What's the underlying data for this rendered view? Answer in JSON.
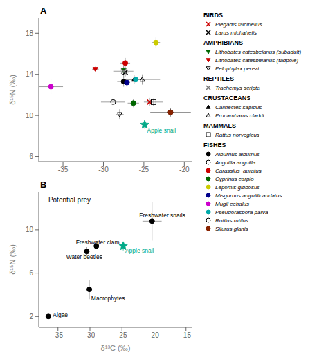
{
  "chart_data": [
    {
      "type": "scatter",
      "title": "A",
      "ylabel": "δ¹⁵N (‰)",
      "xlim": [
        -38,
        -19
      ],
      "ylim": [
        5.5,
        19.5
      ],
      "xticks": [
        -35,
        -30,
        -25,
        -20
      ],
      "yticks": [
        6,
        10,
        14,
        18
      ],
      "series": [
        {
          "name": "Plegadis falcinellus",
          "group": "BIRDS",
          "color": "#cc0000",
          "marker": "x",
          "x": [
            -24.3
          ],
          "values": [
            11.3
          ],
          "xerr": [
            0.35
          ],
          "yerr": [
            0.4
          ]
        },
        {
          "name": "Larus michahelis",
          "group": "BIRDS",
          "color": "#000000",
          "marker": "x",
          "x": [
            -27.3
          ],
          "values": [
            14.2
          ],
          "xerr": [
            0.5
          ],
          "yerr": [
            0.4
          ]
        },
        {
          "name": "Lithobates catesbeianus (subadult)",
          "group": "AMPHIBIANS",
          "color": "#006600",
          "marker": "triangle-down",
          "x": [
            -27.5
          ],
          "values": [
            14.4
          ],
          "xerr": [
            0.4
          ],
          "yerr": [
            0.35
          ]
        },
        {
          "name": "Lithobates catesbeianus (tadpole)",
          "group": "AMPHIBIANS",
          "color": "#cc0000",
          "marker": "triangle-down",
          "x": [
            -31.0
          ],
          "values": [
            14.5
          ],
          "xerr": [
            0.4
          ],
          "yerr": [
            0.3
          ]
        },
        {
          "name": "Pelophylax perezi",
          "group": "AMPHIBIANS",
          "color": "#000000",
          "marker": "triangle-down-open",
          "x": [
            -28.0
          ],
          "values": [
            10.1
          ],
          "xerr": [
            0.5
          ],
          "yerr": [
            0.5
          ]
        },
        {
          "name": "Trachemys scripta",
          "group": "REPTILES",
          "color": "#777777",
          "marker": "x",
          "x": [
            -27.5
          ],
          "values": [
            14.3
          ],
          "xerr": [
            1.2
          ],
          "yerr": [
            0.6
          ]
        },
        {
          "name": "Calinectes sapidus",
          "group": "CRUSTACEANS",
          "color": "#000000",
          "marker": "triangle-up",
          "x": [
            -26.2
          ],
          "values": [
            13.5
          ],
          "xerr": [
            1.0
          ],
          "yerr": [
            0.45
          ]
        },
        {
          "name": "Procambarus clarkii",
          "group": "CRUSTACEANS",
          "color": "#000000",
          "marker": "triangle-up-open",
          "x": [
            -25.2
          ],
          "values": [
            13.5
          ],
          "xerr": [
            2.2
          ],
          "yerr": [
            0.5
          ]
        },
        {
          "name": "Rattus norvegicus",
          "group": "MAMMALS",
          "color": "#000000",
          "marker": "square-open",
          "x": [
            -23.8
          ],
          "values": [
            11.3
          ],
          "xerr": [
            1.2
          ],
          "yerr": [
            0.35
          ]
        },
        {
          "name": "Alburnus alburnus",
          "group": "FISHES",
          "color": "#000000",
          "marker": "circle",
          "x": [
            -27.5
          ],
          "values": [
            13.3
          ],
          "xerr": [
            0.8
          ],
          "yerr": [
            0.5
          ]
        },
        {
          "name": "Anguilla anguilla",
          "group": "FISHES",
          "color": "#000000",
          "marker": "circle-open",
          "x": [
            -28.8
          ],
          "values": [
            11.3
          ],
          "xerr": [
            1.5
          ],
          "yerr": [
            0.5
          ]
        },
        {
          "name": "Carassius  auratus",
          "group": "FISHES",
          "color": "#cc0000",
          "marker": "circle",
          "x": [
            -27.3
          ],
          "values": [
            15.1
          ],
          "xerr": [
            0.6
          ],
          "yerr": [
            0.5
          ]
        },
        {
          "name": "Cyprinus carpio",
          "group": "FISHES",
          "color": "#006600",
          "marker": "circle",
          "x": [
            -26.3
          ],
          "values": [
            11.2
          ],
          "xerr": [
            0.7
          ],
          "yerr": [
            0.4
          ]
        },
        {
          "name": "Lepomis gibbosus",
          "group": "FISHES",
          "color": "#cccc00",
          "marker": "circle",
          "x": [
            -23.5
          ],
          "values": [
            17.1
          ],
          "xerr": [
            0.5
          ],
          "yerr": [
            0.5
          ]
        },
        {
          "name": "Misgurnus anguillicaudatus",
          "group": "FISHES",
          "color": "#00008B",
          "marker": "circle",
          "x": [
            -27.1
          ],
          "values": [
            13.2
          ],
          "xerr": [
            0.4
          ],
          "yerr": [
            0.4
          ]
        },
        {
          "name": "Mugil cehalus",
          "group": "FISHES",
          "color": "#cc00cc",
          "marker": "circle",
          "x": [
            -36.5
          ],
          "values": [
            12.8
          ],
          "xerr": [
            1.5
          ],
          "yerr": [
            0.7
          ]
        },
        {
          "name": "Pseudorasbora parva",
          "group": "FISHES",
          "color": "#00aaaa",
          "marker": "circle",
          "x": [
            -26.0
          ],
          "values": [
            13.5
          ],
          "xerr": [
            0.5
          ],
          "yerr": [
            0.3
          ]
        },
        {
          "name": "Rutilus rutilus",
          "group": "FISHES",
          "color": "#000000",
          "marker": "circle-open",
          "x": [
            -21.7
          ],
          "values": [
            10.3
          ],
          "xerr": [
            2.5
          ],
          "yerr": [
            0.4
          ]
        },
        {
          "name": "Silurus glanis",
          "group": "FISHES",
          "color": "#882200",
          "marker": "circle",
          "x": [
            -21.7
          ],
          "values": [
            10.3
          ],
          "xerr": [
            2.5
          ],
          "yerr": [
            0.4
          ]
        },
        {
          "color": "#00aa88",
          "marker": "star",
          "x": [
            -24.9
          ],
          "values": [
            9.1
          ],
          "xerr": [
            0.4
          ],
          "yerr": [
            0.4
          ]
        }
      ],
      "annotations": [
        {
          "text": "Apple snail",
          "x": -24.6,
          "y": 8.75,
          "color": "#00aa88"
        }
      ]
    },
    {
      "type": "scatter",
      "title": "B",
      "xlabel": "δ¹³C (‰)",
      "ylabel": "δ¹⁵N (‰)",
      "xlim": [
        -38,
        -14
      ],
      "ylim": [
        1.0,
        13.5
      ],
      "xticks": [
        -35,
        -30,
        -25,
        -20,
        -15
      ],
      "yticks": [
        2,
        6,
        10
      ],
      "series": [
        {
          "color": "#000000",
          "marker": "circle",
          "x": [
            -36.5
          ],
          "values": [
            2.0
          ],
          "xerr": [
            0.3
          ],
          "yerr": [
            0.15
          ]
        },
        {
          "color": "#000000",
          "marker": "circle",
          "x": [
            -30.1
          ],
          "values": [
            4.5
          ],
          "xerr": [
            0.4
          ],
          "yerr": [
            0.9
          ]
        },
        {
          "color": "#000000",
          "marker": "circle",
          "x": [
            -30.5
          ],
          "values": [
            8.0
          ],
          "xerr": [
            0.4
          ],
          "yerr": [
            0.4
          ]
        },
        {
          "color": "#000000",
          "marker": "circle",
          "x": [
            -29.0
          ],
          "values": [
            8.5
          ],
          "xerr": [
            0.4
          ],
          "yerr": [
            0.25
          ]
        },
        {
          "color": "#000000",
          "marker": "circle",
          "x": [
            -20.3
          ],
          "values": [
            10.8
          ],
          "xerr": [
            1.5
          ],
          "yerr": [
            1.8
          ]
        },
        {
          "color": "#00aa88",
          "marker": "star",
          "x": [
            -24.8
          ],
          "values": [
            8.5
          ],
          "xerr": [
            0.4
          ],
          "yerr": [
            0.4
          ]
        }
      ],
      "annotations": [
        {
          "text": "Potential prey",
          "x": -36.5,
          "y": 13.0
        },
        {
          "text": "Algae",
          "x": -35.8,
          "y": 2.15,
          "color": "#000000"
        },
        {
          "text": "Macrophytes",
          "x": -29.8,
          "y": 3.7,
          "color": "#000000"
        },
        {
          "text": "Water beetles",
          "x": -33.7,
          "y": 7.5,
          "color": "#000000"
        },
        {
          "text": "Freshwater clam",
          "x": -32.2,
          "y": 8.85,
          "color": "#000000"
        },
        {
          "text": "Freshwater snails",
          "x": -22.3,
          "y": 11.3,
          "color": "#000000"
        },
        {
          "text": "Apple snail",
          "x": -24.5,
          "y": 8.05,
          "color": "#00aa88"
        }
      ]
    }
  ]
}
